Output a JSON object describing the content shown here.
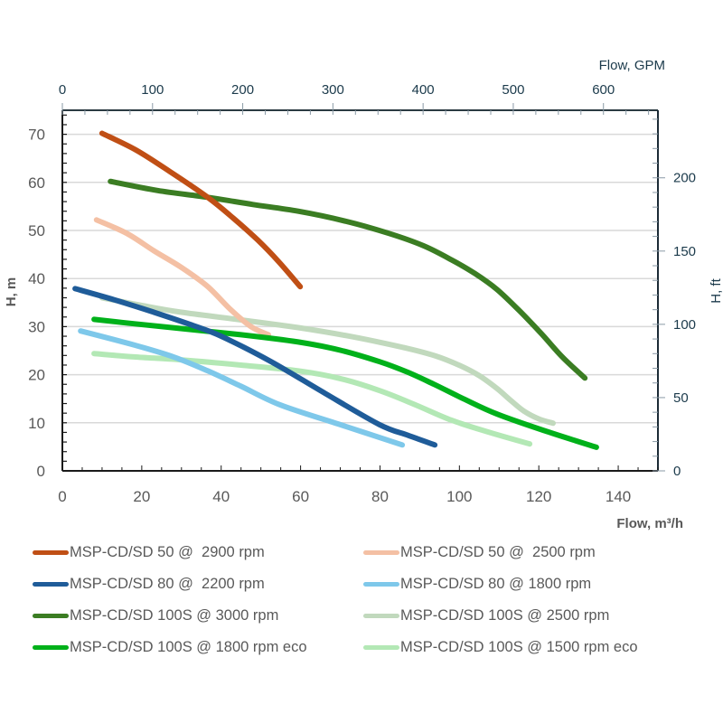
{
  "chart_data": {
    "type": "line",
    "title": "",
    "xlabel": "Flow,  m³/h",
    "ylabel": "H, m",
    "x2label": "Flow, GPM",
    "y2label": "H, ft",
    "xlim": [
      0,
      150
    ],
    "ylim": [
      0,
      75
    ],
    "x2lim": [
      0,
      660.4
    ],
    "y2lim": [
      0,
      246.1
    ],
    "grid": "horizontal",
    "legend_position": "bottom",
    "x_ticks": [
      "0",
      "20",
      "40",
      "60",
      "80",
      "100",
      "120",
      "140"
    ],
    "y_ticks": [
      "0",
      "10",
      "20",
      "30",
      "40",
      "50",
      "60",
      "70"
    ],
    "x2_ticks": [
      "0",
      "100",
      "200",
      "300",
      "400",
      "500",
      "600"
    ],
    "y2_ticks": [
      "0",
      "50",
      "100",
      "150",
      "200"
    ],
    "series": [
      {
        "name": "MSP-CD/SD 50 @  2900 rpm",
        "color": "#C04F15",
        "x": [
          10,
          18.4,
          27,
          36.6,
          43,
          49.2,
          54.5,
          59.9
        ],
        "y": [
          70.2,
          66.8,
          62.3,
          56.9,
          52.6,
          48.0,
          43.5,
          38.3
        ]
      },
      {
        "name": "MSP-CD/SD 50 @  2500 rpm",
        "color": "#F4C0A4",
        "x": [
          8.6,
          16.2,
          23,
          29.8,
          36.5,
          42.3,
          47.5,
          51.9
        ],
        "y": [
          52.2,
          49.4,
          45.8,
          42.4,
          38.4,
          33.6,
          30.0,
          28.3
        ]
      },
      {
        "name": "MSP-CD/SD 80 @  2200 rpm",
        "color": "#1F5C99",
        "x": [
          3.2,
          13,
          23,
          32,
          40,
          52.6,
          66.2,
          79.9,
          87,
          93.8
        ],
        "y": [
          37.9,
          35.6,
          33.0,
          30.5,
          28.0,
          22.7,
          16.1,
          9.6,
          7.4,
          5.4
        ]
      },
      {
        "name": "MSP-CD/SD 80 @ 1800 rpm",
        "color": "#7EC8EA",
        "x": [
          4.6,
          18.4,
          28,
          36.6,
          45,
          54.9,
          70,
          85.6
        ],
        "y": [
          29.1,
          26.1,
          23.7,
          20.8,
          17.6,
          13.7,
          9.6,
          5.4
        ]
      },
      {
        "name": "MSP-CD/SD 100S @ 3000 rpm",
        "color": "#3B7D23",
        "x": [
          12.1,
          24,
          36.6,
          48,
          59.4,
          71,
          82.2,
          91,
          98,
          104,
          109.5,
          115,
          120.9,
          126,
          131.6
        ],
        "y": [
          60.2,
          58.3,
          56.9,
          55.4,
          54.0,
          52.0,
          49.4,
          46.8,
          43.9,
          41.0,
          37.7,
          33.4,
          28.3,
          23.6,
          19.3
        ]
      },
      {
        "name": "MSP-CD/SD 100S @ 2500 rpm",
        "color": "#C1D9BD",
        "x": [
          10,
          20,
          29.8,
          45,
          59.4,
          73,
          86.7,
          94,
          100.4,
          105,
          109.5,
          113,
          116.3,
          120,
          123.6
        ],
        "y": [
          36.0,
          34.4,
          33.0,
          31.4,
          29.8,
          27.9,
          25.5,
          23.9,
          21.8,
          19.8,
          17.1,
          14.6,
          12.4,
          10.8,
          9.9
        ]
      },
      {
        "name": "MSP-CD/SD 100S @ 1800 rpm eco",
        "color": "#00B11A",
        "x": [
          8,
          18,
          29.8,
          45,
          59.4,
          70,
          79.9,
          87,
          93.6,
          101,
          109.5,
          122,
          134.5
        ],
        "y": [
          31.5,
          30.6,
          29.6,
          28.3,
          26.8,
          25.1,
          22.7,
          20.5,
          18.0,
          15.0,
          11.8,
          8.2,
          4.9
        ]
      },
      {
        "name": "MSP-CD/SD 100S @ 1500 rpm eco",
        "color": "#B3E8B5",
        "x": [
          8,
          18,
          29.8,
          45,
          59.4,
          70,
          79.9,
          89,
          98.1,
          108,
          117.7
        ],
        "y": [
          24.4,
          23.7,
          23.1,
          22.0,
          20.8,
          19.2,
          16.7,
          13.7,
          10.5,
          7.9,
          5.6
        ]
      }
    ]
  }
}
